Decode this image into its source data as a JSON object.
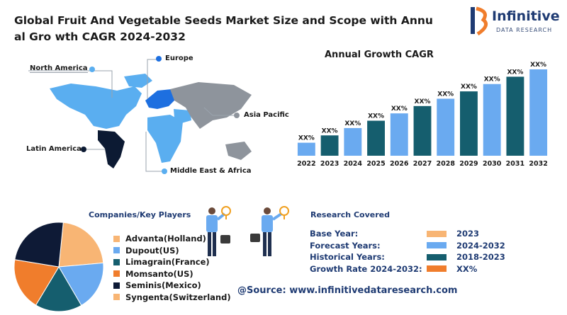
{
  "header": {
    "title": "Global Fruit And Vegetable Seeds Market Size and Scope with Annual Gro wth CAGR 2024-2032",
    "logo_name": "Infinitive",
    "logo_sub": "DATA RESEARCH"
  },
  "map": {
    "regions": [
      {
        "name": "North America",
        "color": "#5aaef0"
      },
      {
        "name": "Europe",
        "color": "#1d6fe0"
      },
      {
        "name": "Asia Pacific",
        "color": "#8e949c"
      },
      {
        "name": "Latin America",
        "color": "#0c1a33"
      },
      {
        "name": "Middle East & Africa",
        "color": "#5aaef0"
      }
    ]
  },
  "chart_data": {
    "type": "bar",
    "title": "Annual Growth CAGR",
    "categories": [
      "2022",
      "2023",
      "2024",
      "2025",
      "2026",
      "2027",
      "2028",
      "2029",
      "2030",
      "2031",
      "2032"
    ],
    "values": [
      1,
      2,
      3,
      4,
      5,
      6,
      7,
      8,
      9,
      10,
      11
    ],
    "value_labels": [
      "XX%",
      "XX%",
      "XX%",
      "XX%",
      "XX%",
      "XX%",
      "XX%",
      "XX%",
      "XX%",
      "XX%",
      "XX%"
    ],
    "colors": [
      "#6aaaf0",
      "#155e6e",
      "#6aaaf0",
      "#155e6e",
      "#6aaaf0",
      "#155e6e",
      "#6aaaf0",
      "#155e6e",
      "#6aaaf0",
      "#155e6e",
      "#6aaaf0"
    ],
    "grid": false
  },
  "companies": {
    "title": "Companies/Key Players",
    "items": [
      {
        "label": "Advanta(Holland)",
        "color": "#f8b574",
        "share": 0.22
      },
      {
        "label": "Dupout(US)",
        "color": "#6aaaf0",
        "share": 0.18
      },
      {
        "label": "Limagrain(France)",
        "color": "#155e6e",
        "share": 0.17
      },
      {
        "label": "Momsanto(US)",
        "color": "#f07d2c",
        "share": 0.19
      },
      {
        "label": "Seminis(Mexico)",
        "color": "#0e1a36",
        "share": 0.24
      },
      {
        "label": "Syngenta(Switzerland)",
        "color": "#f8b574",
        "share": 0
      }
    ]
  },
  "research": {
    "title": "Research Covered",
    "rows": [
      {
        "label": "Base Year:",
        "value": "2023",
        "color": "#f8b574"
      },
      {
        "label": "Forecast Years:",
        "value": "2024-2032",
        "color": "#6aaaf0"
      },
      {
        "label": "Historical Years:",
        "value": "2018-2023",
        "color": "#155e6e"
      },
      {
        "label": "Growth Rate 2024-2032:",
        "value": "XX%",
        "color": "#f07d2c"
      }
    ]
  },
  "footer": {
    "source": "@Source: www.infinitivedataresearch.com"
  }
}
